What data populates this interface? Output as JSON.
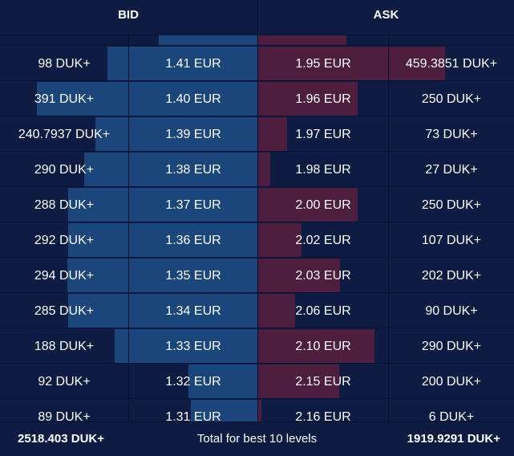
{
  "header": {
    "bid_label": "BID",
    "ask_label": "ASK"
  },
  "levels": [
    {
      "bid_size": "",
      "bid_price": "",
      "ask_price": "",
      "ask_size": "",
      "bid_bar": 0.382,
      "ask_bar": 0.342
    },
    {
      "bid_size": "98 DUK+",
      "bid_price": "1.41 EUR",
      "ask_price": "1.95 EUR",
      "ask_size": "459.3851 DUK+",
      "bid_bar": 0.582,
      "ask_bar": 0.727
    },
    {
      "bid_size": "391 DUK+",
      "bid_price": "1.40 EUR",
      "ask_price": "1.96 EUR",
      "ask_size": "250 DUK+",
      "bid_bar": 0.856,
      "ask_bar": 0.385
    },
    {
      "bid_size": "240.7937 DUK+",
      "bid_price": "1.39 EUR",
      "ask_price": "1.97 EUR",
      "ask_size": "73 DUK+",
      "bid_bar": 0.628,
      "ask_bar": 0.112
    },
    {
      "bid_size": "290 DUK+",
      "bid_price": "1.38 EUR",
      "ask_price": "1.98 EUR",
      "ask_size": "27 DUK+",
      "bid_bar": 0.672,
      "ask_bar": 0.047
    },
    {
      "bid_size": "288 DUK+",
      "bid_price": "1.37 EUR",
      "ask_price": "2.00 EUR",
      "ask_size": "250 DUK+",
      "bid_bar": 0.734,
      "ask_bar": 0.385
    },
    {
      "bid_size": "292 DUK+",
      "bid_price": "1.36 EUR",
      "ask_price": "2.02 EUR",
      "ask_size": "107 DUK+",
      "bid_bar": 0.734,
      "ask_bar": 0.168
    },
    {
      "bid_size": "294 DUK+",
      "bid_price": "1.35 EUR",
      "ask_price": "2.03 EUR",
      "ask_size": "202 DUK+",
      "bid_bar": 0.738,
      "ask_bar": 0.317
    },
    {
      "bid_size": "285 DUK+",
      "bid_price": "1.34 EUR",
      "ask_price": "2.06 EUR",
      "ask_size": "90 DUK+",
      "bid_bar": 0.734,
      "ask_bar": 0.143
    },
    {
      "bid_size": "188 DUK+",
      "bid_price": "1.33 EUR",
      "ask_price": "2.10 EUR",
      "ask_size": "290 DUK+",
      "bid_bar": 0.553,
      "ask_bar": 0.451
    },
    {
      "bid_size": "92 DUK+",
      "bid_price": "1.32 EUR",
      "ask_price": "2.15 EUR",
      "ask_size": "200 DUK+",
      "bid_bar": 0.269,
      "ask_bar": 0.314
    },
    {
      "bid_size": "89 DUK+",
      "bid_price": "1.31 EUR",
      "ask_price": "2.16 EUR",
      "ask_size": "6 DUK+",
      "bid_bar": 0.259,
      "ask_bar": 0.012
    }
  ],
  "footer": {
    "bid_total": "2518.403 DUK+",
    "label": "Total for best 10 levels",
    "ask_total": "1919.9291 DUK+"
  },
  "colors": {
    "background": "#0e1c43",
    "bid_bar": "#1b467c",
    "ask_bar": "#4d1e3e"
  }
}
